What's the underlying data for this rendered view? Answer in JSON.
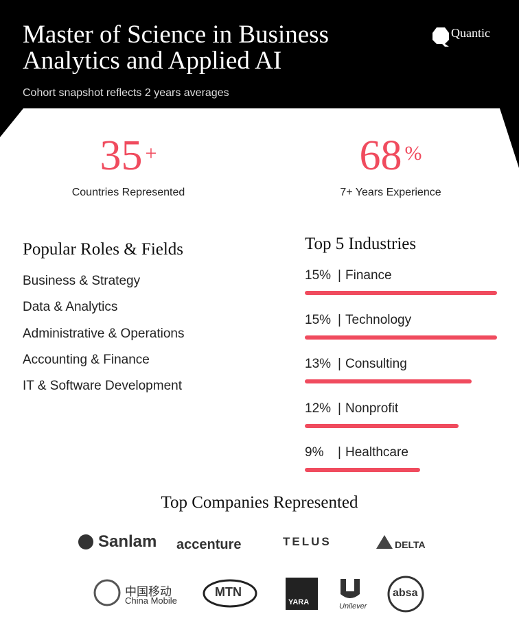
{
  "header": {
    "title": "Master of Science in Business Analytics and Applied AI",
    "subtitle": "Cohort snapshot reflects 2 years averages",
    "brand": "Quantic"
  },
  "stats": [
    {
      "number": 35,
      "suffix": "+",
      "label": "Countries Represented"
    },
    {
      "number": 68,
      "suffix": "%",
      "label": "7+ Years Experience"
    }
  ],
  "roles": {
    "title": "Popular Roles & Fields",
    "items": [
      "Business & Strategy",
      "Data & Analytics",
      "Administrative & Operations",
      "Accounting & Finance",
      "IT & Software Development"
    ]
  },
  "industries": {
    "title": "Top 5 Industries",
    "separator": "|",
    "items": [
      {
        "value": 15,
        "value_label": "15%",
        "name": "Finance"
      },
      {
        "value": 15,
        "value_label": "15%",
        "name": "Technology"
      },
      {
        "value": 13,
        "value_label": "13%",
        "name": "Consulting"
      },
      {
        "value": 12,
        "value_label": "12%",
        "name": "Nonprofit"
      },
      {
        "value": 9,
        "value_label": "9%",
        "name": "Healthcare"
      }
    ]
  },
  "companies": {
    "title": "Top Companies Represented",
    "logos": [
      "Sanlam",
      "accenture",
      "TELUS",
      "DELTA",
      "中国移动",
      "China Mobile",
      "MTN",
      "YARA",
      "Unilever",
      "absa"
    ]
  }
}
